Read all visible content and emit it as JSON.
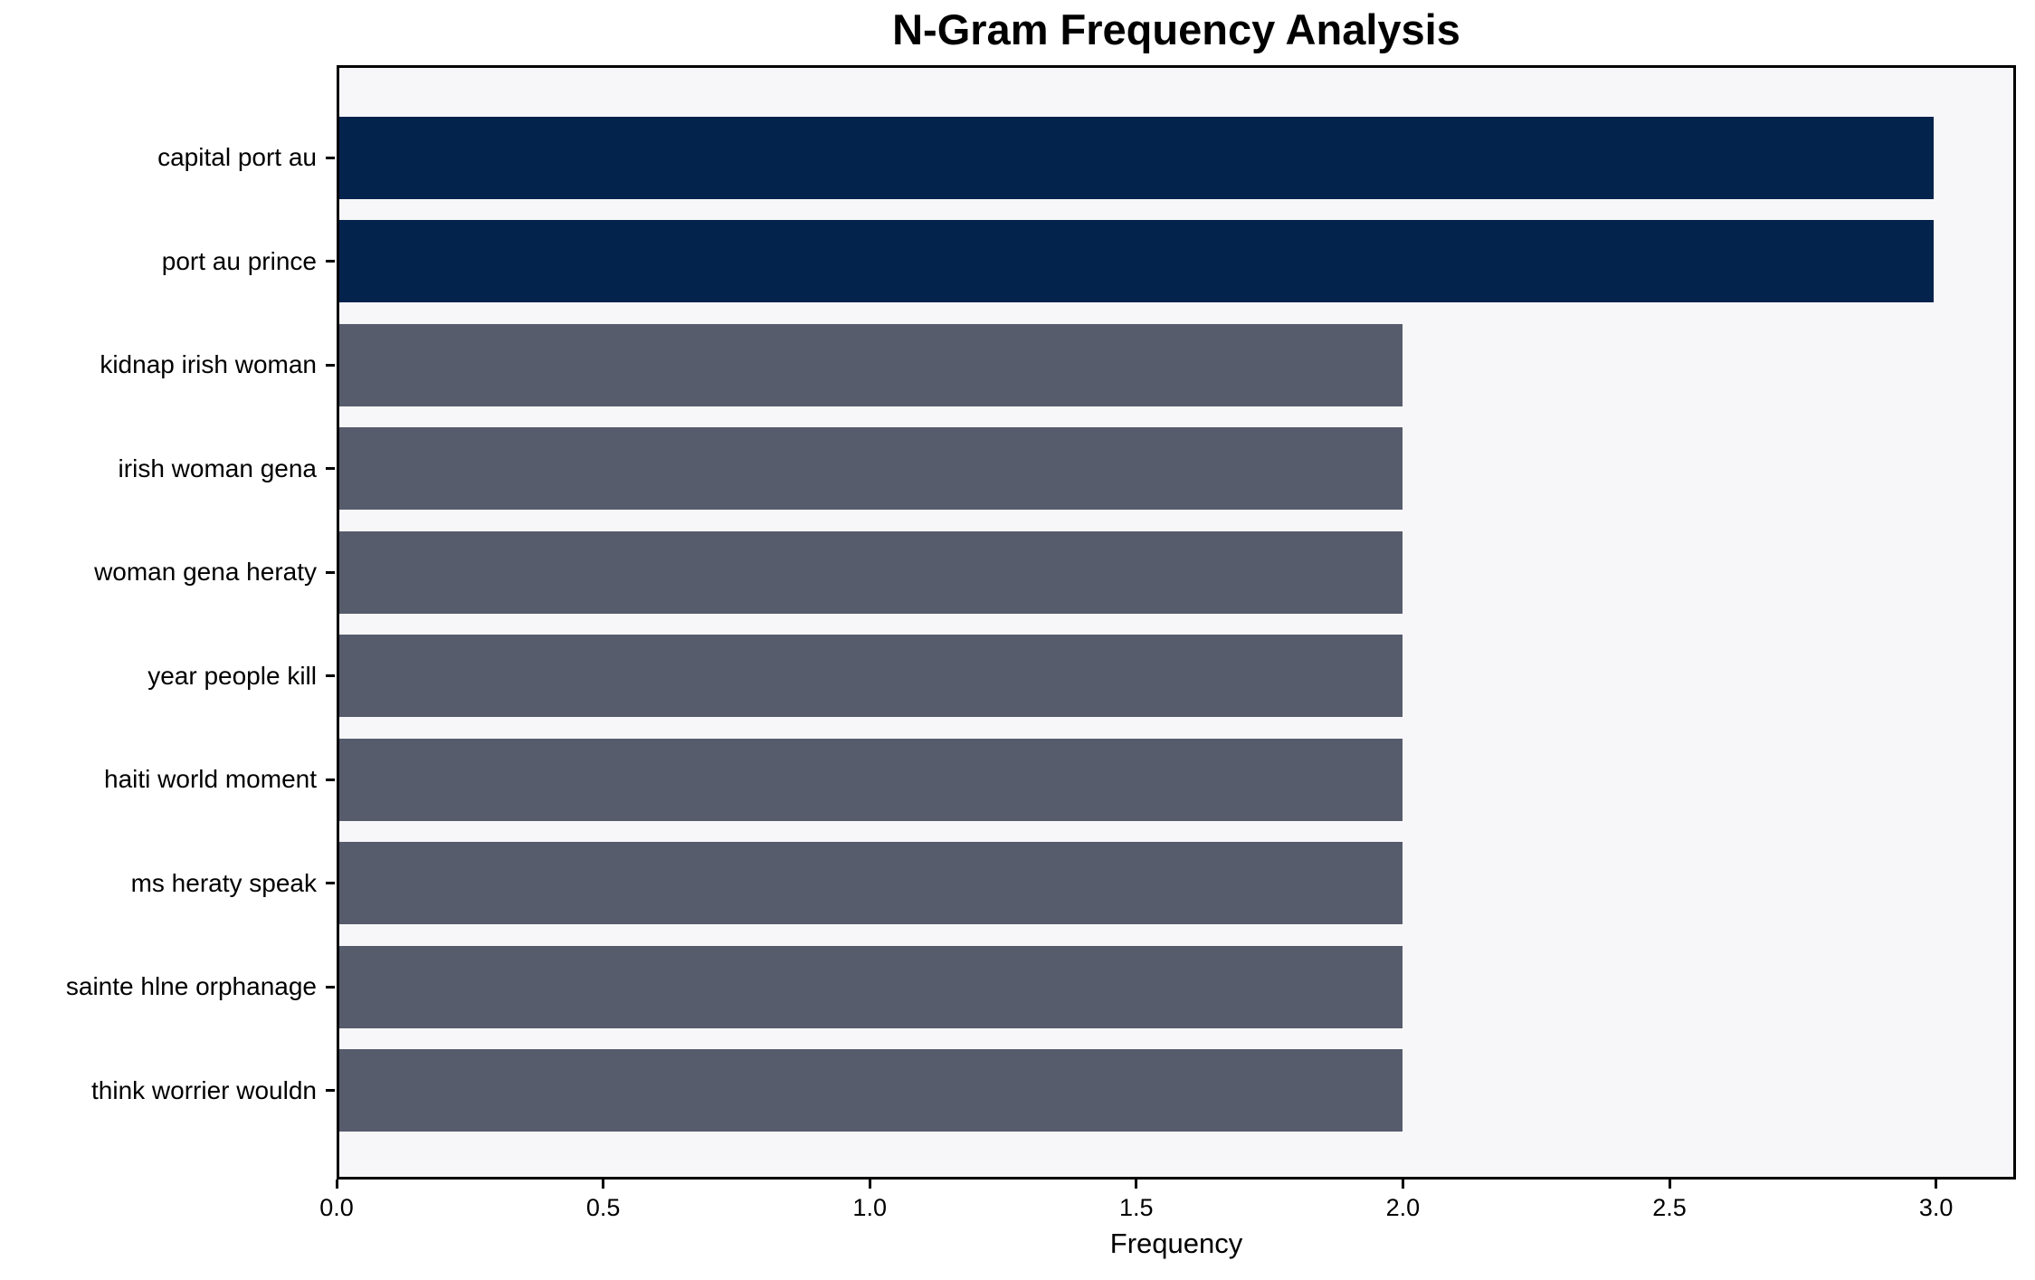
{
  "chart_data": {
    "type": "bar",
    "orientation": "horizontal",
    "title": "N-Gram Frequency Analysis",
    "xlabel": "Frequency",
    "ylabel": "",
    "categories": [
      "capital port au",
      "port au prince",
      "kidnap irish woman",
      "irish woman gena",
      "woman gena heraty",
      "year people kill",
      "haiti world moment",
      "ms heraty speak",
      "sainte hlne orphanage",
      "think worrier wouldn"
    ],
    "values": [
      3,
      3,
      2,
      2,
      2,
      2,
      2,
      2,
      2,
      2
    ],
    "bar_colors": [
      "#03234d",
      "#03234d",
      "#565c6c",
      "#565c6c",
      "#565c6c",
      "#565c6c",
      "#565c6c",
      "#565c6c",
      "#565c6c",
      "#565c6c"
    ],
    "xlim": [
      0,
      3.15
    ],
    "xtick_labels": [
      "0.0",
      "0.5",
      "1.0",
      "1.5",
      "2.0",
      "2.5",
      "3.0"
    ],
    "grid": false,
    "legend": null,
    "colors": {
      "highlight": "#03234d",
      "default_bar": "#565c6c",
      "plot_background": "#f7f7f9",
      "figure_background": "#ffffff",
      "spine": "#000000",
      "text": "#000000"
    }
  }
}
